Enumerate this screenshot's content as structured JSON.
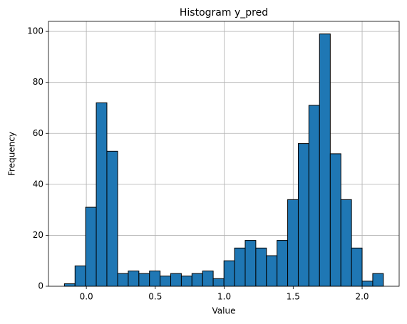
{
  "chart_data": {
    "type": "histogram",
    "title": "Histogram y_pred",
    "x_label": "Value",
    "y_label": "Frequency",
    "bins": [
      -0.159,
      -0.082,
      -0.005,
      0.072,
      0.149,
      0.227,
      0.304,
      0.381,
      0.458,
      0.535,
      0.612,
      0.689,
      0.766,
      0.843,
      0.92,
      0.998,
      1.075,
      1.152,
      1.229,
      1.306,
      1.383,
      1.46,
      1.537,
      1.614,
      1.691,
      1.769,
      1.846,
      1.923,
      2.0,
      2.077,
      2.154
    ],
    "values": [
      1,
      8,
      31,
      72,
      53,
      5,
      6,
      5,
      6,
      4,
      5,
      4,
      5,
      6,
      3,
      10,
      15,
      18,
      15,
      12,
      18,
      34,
      56,
      71,
      99,
      52,
      34,
      15,
      2,
      5
    ],
    "color": "#1f77b4",
    "edgecolor": "#000000",
    "xlim": [
      -0.2746,
      2.2686
    ],
    "ylim": [
      0,
      103.95
    ],
    "xticks": [
      {
        "value": 0,
        "label": "0.0"
      },
      {
        "value": 0.5,
        "label": "0.5"
      },
      {
        "value": 1,
        "label": "1.0"
      },
      {
        "value": 1.5,
        "label": "1.5"
      },
      {
        "value": 2,
        "label": "2.0"
      }
    ],
    "yticks": [
      0,
      20,
      40,
      60,
      80,
      100
    ],
    "grid": true
  }
}
